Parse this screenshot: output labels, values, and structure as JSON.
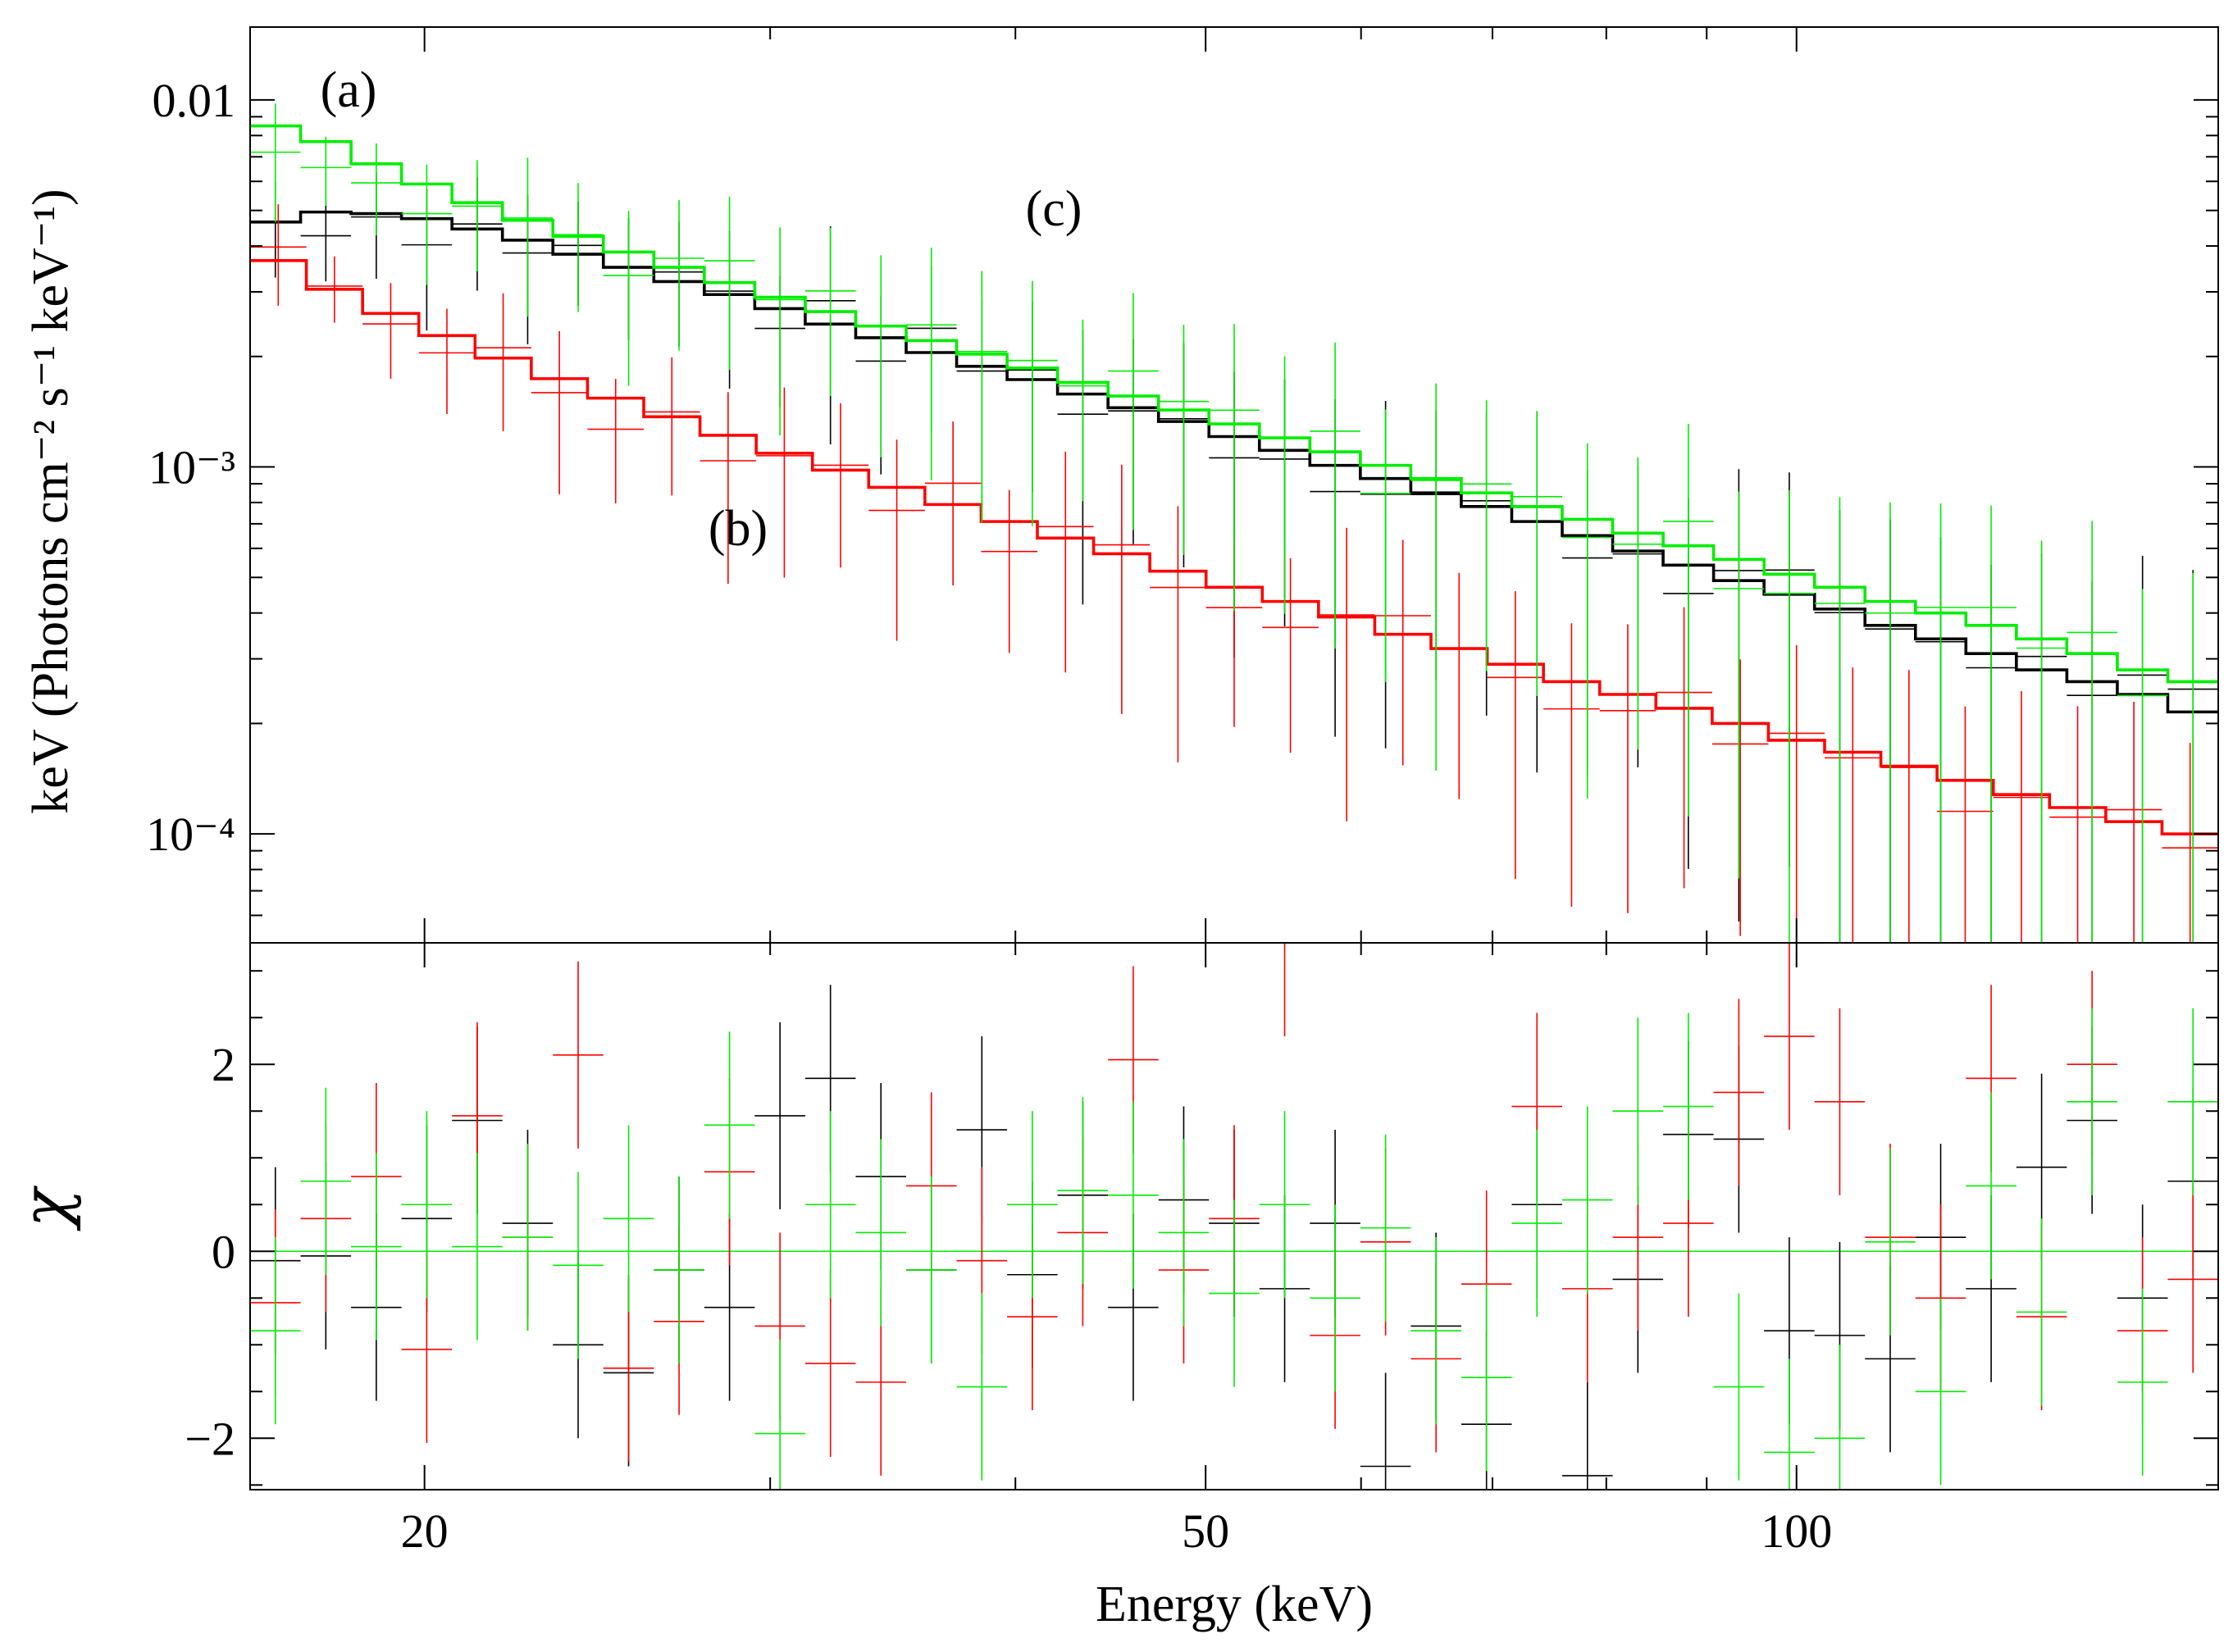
{
  "chart_data": [
    {
      "type": "line",
      "panel": "top",
      "title": "",
      "xlabel": "Energy (keV)",
      "ylabel": "keV  (Photons cm⁻² s⁻¹ keV⁻¹)",
      "yscale": "log",
      "xscale": "log",
      "xlim": [
        16.3,
        164.0
      ],
      "ylim": [
        5.05e-05,
        0.0158
      ],
      "ytick_labels": [
        "0.01",
        "10⁻³",
        "10⁻⁴"
      ],
      "ytick_values": [
        0.01,
        0.001,
        0.0001
      ],
      "annotations": [
        "(a)",
        "(b)",
        "(c)"
      ],
      "series": [
        {
          "name": "(a)",
          "color": "#000000",
          "values": [
            0.00465,
            0.00495,
            0.0049,
            0.00475,
            0.00445,
            0.00415,
            0.0038,
            0.0035,
            0.0032,
            0.00295,
            0.0027,
            0.00245,
            0.00225,
            0.00205,
            0.00188,
            0.00173,
            0.00158,
            0.00145,
            0.00133,
            0.00121,
            0.00111,
            0.00101,
            0.00093,
            0.00085,
            0.00078,
            0.00071,
            0.00065,
            0.00059,
            0.00054,
            0.00049,
            0.00045,
            0.00041,
            0.00037,
            0.00034,
            0.00031,
            0.00028,
            0.00026,
            0.00024,
            0.000215
          ]
        },
        {
          "name": "(b)",
          "color": "#ff0000",
          "values": [
            0.00365,
            0.00305,
            0.00262,
            0.00228,
            0.00198,
            0.00174,
            0.00154,
            0.00137,
            0.00122,
            0.00109,
            0.00098,
            0.00088,
            0.00079,
            0.00071,
            0.00064,
            0.00058,
            0.00052,
            0.00047,
            0.00043,
            0.00039,
            0.00035,
            0.00032,
            0.00029,
            0.00026,
            0.00024,
            0.00022,
            0.0002,
            0.00018,
            0.000167,
            0.000153,
            0.00014,
            0.000128,
            0.000118,
            0.000108,
            0.0001
          ]
        },
        {
          "name": "(c)",
          "color": "#00ee00",
          "values": [
            0.0085,
            0.0077,
            0.0067,
            0.0059,
            0.00525,
            0.0047,
            0.00425,
            0.00385,
            0.0035,
            0.00318,
            0.0029,
            0.00265,
            0.00242,
            0.00221,
            0.00203,
            0.00186,
            0.0017,
            0.00156,
            0.00143,
            0.00131,
            0.0012,
            0.0011,
            0.00101,
            0.00093,
            0.00085,
            0.00078,
            0.00072,
            0.00066,
            0.00061,
            0.00056,
            0.00051,
            0.00047,
            0.00043,
            0.0004,
            0.00037,
            0.00034,
            0.00031,
            0.00028,
            0.00026
          ]
        }
      ]
    },
    {
      "type": "scatter",
      "panel": "bottom",
      "xlabel": "Energy (keV)",
      "ylabel": "χ",
      "xscale": "log",
      "xlim": [
        16.3,
        164.0
      ],
      "ylim": [
        -2.55,
        3.3
      ],
      "ytick_labels": [
        "2",
        "0",
        "−2"
      ],
      "ytick_values": [
        2,
        0,
        -2
      ],
      "xtick_labels": [
        "20",
        "50",
        "100"
      ],
      "xtick_values": [
        20,
        50,
        100
      ],
      "zero_line": 0,
      "series": [
        {
          "name": "(a)",
          "color": "#000000",
          "values": [
            -0.1,
            -0.05,
            -0.6,
            0.35,
            1.4,
            0.3,
            -1.0,
            -1.3,
            -0.2,
            -0.6,
            1.45,
            1.85,
            0.8,
            -0.2,
            1.3,
            -0.25,
            0.6,
            -0.6,
            0.55,
            0.3,
            -0.4,
            0.3,
            -2.3,
            -0.8,
            -1.85,
            0.5,
            -2.4,
            -0.3,
            1.25,
            1.2,
            -0.85,
            -0.9,
            -1.15,
            0.15,
            -0.4,
            0.9,
            1.4,
            -0.5,
            0.75
          ]
        },
        {
          "name": "(b)",
          "color": "#ff0000",
          "values": [
            -0.55,
            0.35,
            0.8,
            -1.05,
            1.45,
            0.15,
            2.1,
            -1.25,
            -0.75,
            0.85,
            -0.8,
            -1.2,
            -1.4,
            0.7,
            -0.1,
            -0.7,
            0.2,
            2.05,
            -0.2,
            0.35,
            3.3,
            -0.9,
            0.1,
            -1.15,
            -0.35,
            1.55,
            -0.4,
            0.15,
            0.3,
            1.7,
            2.3,
            1.6,
            0.15,
            -0.5,
            1.85,
            -0.7,
            2.0,
            -0.85,
            -0.3
          ]
        },
        {
          "name": "(c)",
          "color": "#00ee00",
          "values": [
            -0.85,
            0.75,
            0.05,
            0.5,
            0.05,
            0.15,
            -0.15,
            0.35,
            -0.2,
            1.35,
            -1.95,
            0.5,
            0.2,
            -0.2,
            -1.45,
            0.5,
            0.65,
            0.6,
            0.2,
            -0.45,
            0.5,
            -0.5,
            0.25,
            -0.85,
            -1.35,
            0.3,
            0.55,
            1.5,
            1.55,
            -1.45,
            -2.15,
            -2.0,
            0.1,
            -1.5,
            0.7,
            -0.65,
            1.6,
            -1.4,
            1.6
          ]
        }
      ]
    }
  ]
}
